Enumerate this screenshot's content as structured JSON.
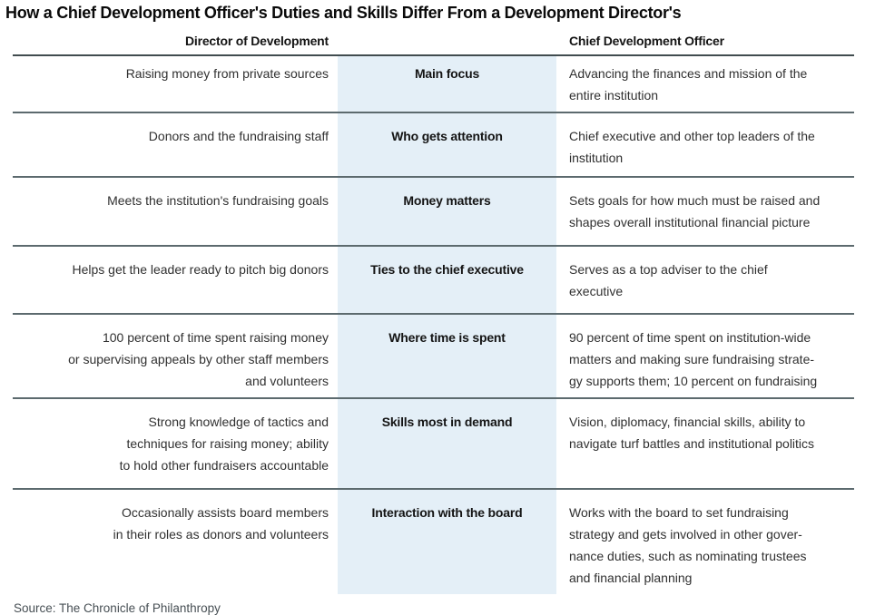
{
  "title": "How a Chief Development Officer's Duties and Skills Differ From a Development Director's",
  "table": {
    "left_header": "Director of Development",
    "right_header": "Chief Development Officer",
    "rows": [
      {
        "category": "Main focus",
        "director": "Raising money from private sources",
        "cdo": "Advancing the finances and mission of the\nentire institution"
      },
      {
        "category": "Who gets attention",
        "director": "Donors and the fundraising staff",
        "cdo": "Chief executive and other top leaders of the\ninstitution"
      },
      {
        "category": "Money matters",
        "director": "Meets the institution's fundraising goals",
        "cdo": "Sets goals for how much must be raised and\nshapes overall institutional financial picture"
      },
      {
        "category": "Ties to the chief executive",
        "director": "Helps get the leader ready to pitch big donors",
        "cdo": "Serves as a top adviser to the chief\nexecutive"
      },
      {
        "category": "Where time is spent",
        "director": "100 percent of time spent raising money\nor supervising appeals by other staff members\nand volunteers",
        "cdo": "90 percent of time spent on institution-wide\nmatters and making sure fundraising strate-\ngy supports them; 10 percent on fundraising"
      },
      {
        "category": "Skills most in demand",
        "director": "Strong knowledge of tactics and\ntechniques for raising money; ability\nto hold other fundraisers accountable",
        "cdo": "Vision, diplomacy, financial skills, ability to\nnavigate turf battles and institutional politics"
      },
      {
        "category": "Interaction with the board",
        "director": "Occasionally assists board members\nin their roles as donors and volunteers",
        "cdo": "Works with the board to set fundraising\nstrategy and gets involved in other gover-\nnance duties, such as nominating trustees\nand financial planning"
      }
    ]
  },
  "source": "Source: The Chronicle of Philanthropy",
  "colors": {
    "band_background": "#e4eff7",
    "separator_line": "#5c6a6e",
    "header_line": "#414c4f",
    "body_text": "#303030",
    "title_text": "#0a0a0a",
    "source_text": "#474f54"
  }
}
